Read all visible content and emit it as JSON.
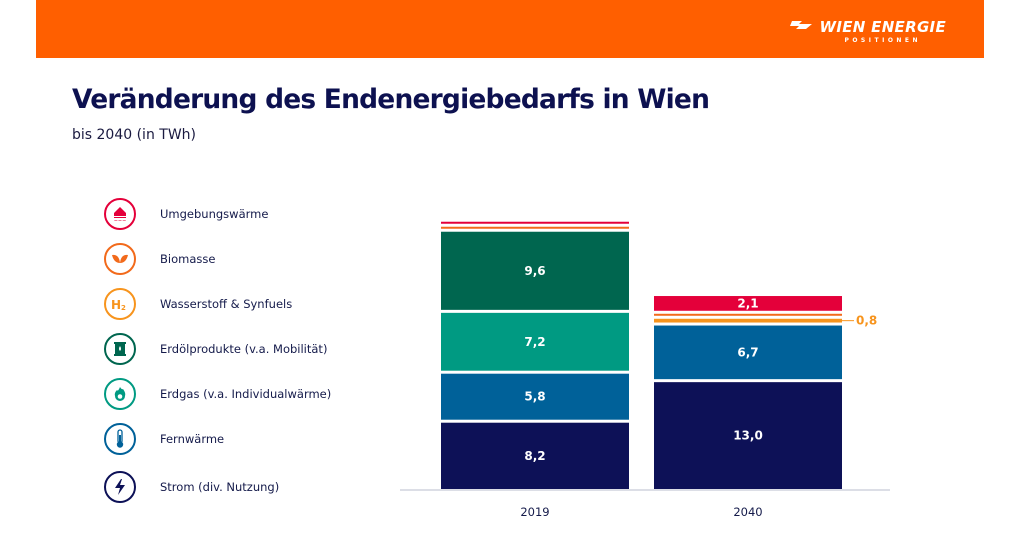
{
  "header": {
    "logo_main": "WIEN ENERGIE",
    "logo_sub": "POSITIONEN",
    "brand_color": "#ff5f00"
  },
  "title": "Veränderung des Endenergiebedarfs in Wien",
  "subtitle": "bis 2040 (in TWh)",
  "legend": [
    {
      "label": "Umgebungswärme",
      "icon": "heat-pump-house-icon",
      "color": "#e4003a"
    },
    {
      "label": "Biomasse",
      "icon": "leaves-icon",
      "color": "#f26a1b"
    },
    {
      "label": "Wasserstoff & Synfuels",
      "icon": "h2-icon",
      "color": "#f7941d"
    },
    {
      "label": "Erdölprodukte (v.a. Mobilität)",
      "icon": "oil-barrel-icon",
      "color": "#00664f"
    },
    {
      "label": "Erdgas (v.a. Individualwärme)",
      "icon": "gas-flame-icon",
      "color": "#009a82"
    },
    {
      "label": "Fernwärme",
      "icon": "thermometer-icon",
      "color": "#006199"
    },
    {
      "label": "Strom (div. Nutzung)",
      "icon": "lightning-icon",
      "color": "#0d1157"
    }
  ],
  "chart_data": {
    "type": "bar",
    "stacked": true,
    "title": "Veränderung des Endenergiebedarfs in Wien",
    "subtitle": "bis 2040 (in TWh)",
    "categories": [
      "2019",
      "2040"
    ],
    "xlabel": "",
    "ylabel": "TWh",
    "grid": false,
    "legend_position": "left",
    "series": [
      {
        "name": "Strom (div. Nutzung)",
        "color": "#0d1157",
        "values": [
          8.2,
          13.0
        ],
        "labels": [
          "8,2",
          "13,0"
        ]
      },
      {
        "name": "Fernwärme",
        "color": "#006199",
        "values": [
          5.8,
          6.7
        ],
        "labels": [
          "5,8",
          "6,7"
        ]
      },
      {
        "name": "Erdgas (v.a. Individualwärme)",
        "color": "#009a82",
        "values": [
          7.2,
          0
        ],
        "labels": [
          "7,2",
          ""
        ]
      },
      {
        "name": "Erdölprodukte (v.a. Mobilität)",
        "color": "#00664f",
        "values": [
          9.6,
          0
        ],
        "labels": [
          "9,6",
          ""
        ]
      },
      {
        "name": "Wasserstoff & Synfuels",
        "color": "#f7941d",
        "values": [
          0,
          0.8
        ],
        "labels": [
          "",
          ""
        ],
        "callout": "0,8"
      },
      {
        "name": "Biomasse",
        "color": "#f26a1b",
        "values": [
          0.5,
          0.4
        ],
        "labels": [
          "",
          ""
        ]
      },
      {
        "name": "Umgebungswärme",
        "color": "#e4003a",
        "values": [
          0.2,
          2.1
        ],
        "labels": [
          "",
          "2,1"
        ]
      }
    ]
  }
}
